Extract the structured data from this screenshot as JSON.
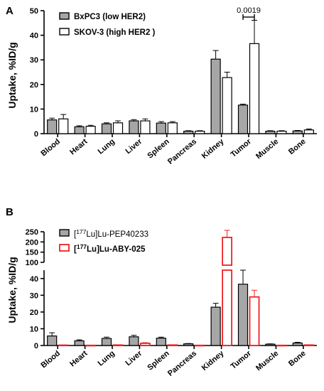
{
  "chart_data": [
    {
      "type": "bar",
      "panel": "A",
      "ylabel": "Uptake, %ID/g",
      "ylim": [
        0,
        50
      ],
      "yticks": [
        0,
        10,
        20,
        30,
        40,
        50
      ],
      "categories": [
        "Blood",
        "Heart",
        "Lung",
        "Liver",
        "Spleen",
        "Pancreas",
        "Kidney",
        "Tumor",
        "Muscle",
        "Bone"
      ],
      "series": [
        {
          "name": "BxPC3 (low HER2)",
          "color": "#a6a6a6",
          "values": [
            5.6,
            2.8,
            4.0,
            5.2,
            4.3,
            1.0,
            30.3,
            11.6,
            1.0,
            1.1
          ],
          "errors": [
            0.7,
            0.4,
            0.4,
            0.5,
            0.6,
            0.2,
            3.5,
            0.4,
            0.2,
            0.2
          ]
        },
        {
          "name": "SKOV-3 (high HER2 )",
          "color": "#ffffff",
          "values": [
            6.0,
            3.0,
            4.4,
            5.2,
            4.4,
            1.0,
            22.8,
            36.6,
            1.0,
            1.5
          ],
          "errors": [
            1.8,
            0.4,
            0.8,
            0.8,
            0.5,
            0.2,
            2.2,
            9.5,
            0.2,
            0.4
          ]
        }
      ],
      "annotation": {
        "text": "0.0019",
        "category": "Tumor"
      },
      "grid": false,
      "legend_position": "top-left"
    },
    {
      "type": "bar",
      "panel": "B",
      "ylabel": "Uptake, %ID/g",
      "axis_break": {
        "lower": [
          0,
          45
        ],
        "upper": [
          100,
          250
        ]
      },
      "yticks_lower": [
        0,
        10,
        20,
        30,
        40
      ],
      "yticks_upper": [
        100,
        150,
        200,
        250
      ],
      "categories": [
        "Blood",
        "Heart",
        "Lung",
        "Liver",
        "Spleen",
        "Pancreas",
        "Kidney",
        "Tumor",
        "Muscle",
        "Bone"
      ],
      "series": [
        {
          "name_pre": "[",
          "name_sup": "177",
          "name_post": "Lu]Lu-PEP40233",
          "color": "#a6a6a6",
          "values": [
            5.7,
            2.8,
            4.2,
            5.2,
            4.4,
            1.0,
            22.9,
            36.6,
            0.8,
            1.5
          ],
          "errors": [
            1.9,
            0.6,
            0.8,
            0.9,
            0.6,
            0.2,
            2.3,
            9.5,
            0.2,
            0.4
          ]
        },
        {
          "name_pre": "[",
          "name_sup": "177",
          "name_post": "Lu]Lu-ABY-025",
          "color": "#ee2222",
          "values": [
            0.2,
            0.1,
            0.3,
            1.3,
            0.3,
            0.1,
            222,
            29.0,
            0.1,
            0.3
          ],
          "errors": [
            0.1,
            0.1,
            0.1,
            0.4,
            0.1,
            0.1,
            35,
            4.0,
            0.1,
            0.1
          ]
        }
      ],
      "grid": false,
      "legend_position": "top-left"
    }
  ]
}
